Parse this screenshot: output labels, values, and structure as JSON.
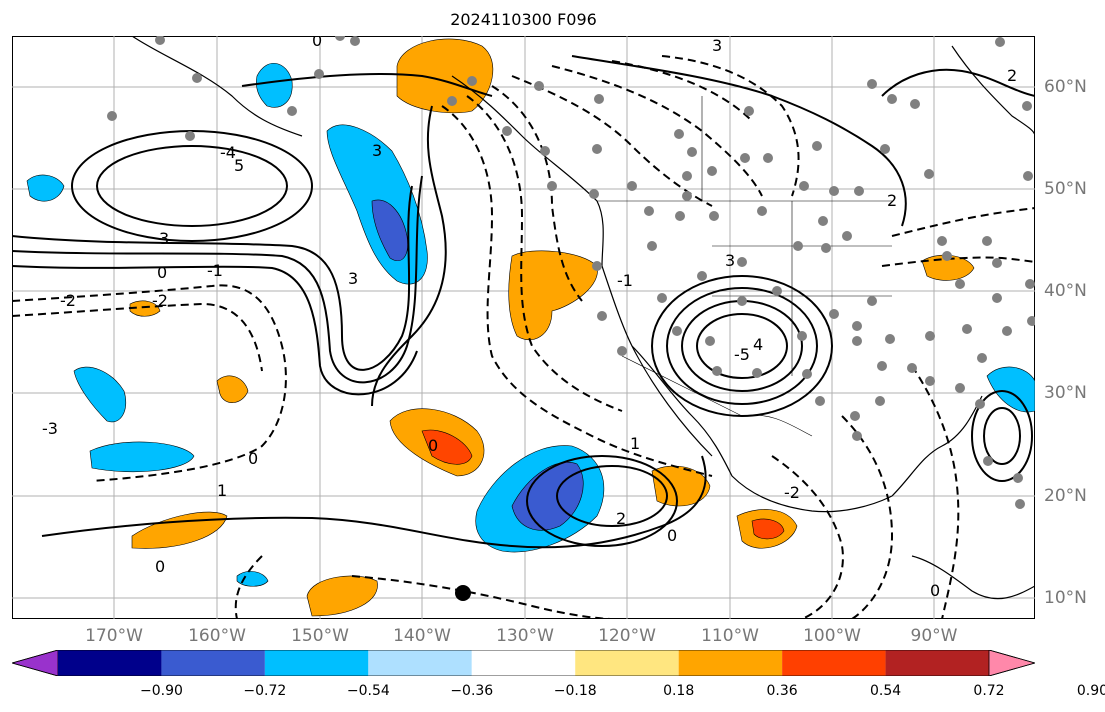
{
  "title": "2024110300 F096",
  "lon_labels": [
    "170°W",
    "160°W",
    "150°W",
    "140°W",
    "130°W",
    "120°W",
    "110°W",
    "100°W",
    "90°W"
  ],
  "lat_labels": [
    "60°N",
    "50°N",
    "40°N",
    "30°N",
    "20°N",
    "10°N"
  ],
  "colorbar": {
    "ticks": [
      "−0.90",
      "−0.72",
      "−0.54",
      "−0.36",
      "−0.18",
      "0.18",
      "0.36",
      "0.54",
      "0.72",
      "0.90"
    ],
    "colors": [
      "#9932cc",
      "#00008b",
      "#3a5bd0",
      "#00bfff",
      "#aee0ff",
      "#ffffff",
      "#ffe680",
      "#ffa500",
      "#ff4000",
      "#b22222",
      "#ff88aa"
    ]
  },
  "contour_labels": [
    "3",
    "2",
    "1",
    "0",
    "-1",
    "-2",
    "-3",
    "4",
    "5",
    "-4",
    "-5"
  ],
  "colors": {
    "orange": "#ffa500",
    "red": "#ff4500",
    "cyan": "#00bfff",
    "blue": "#3a5bd0",
    "station_dot": "#808080"
  }
}
